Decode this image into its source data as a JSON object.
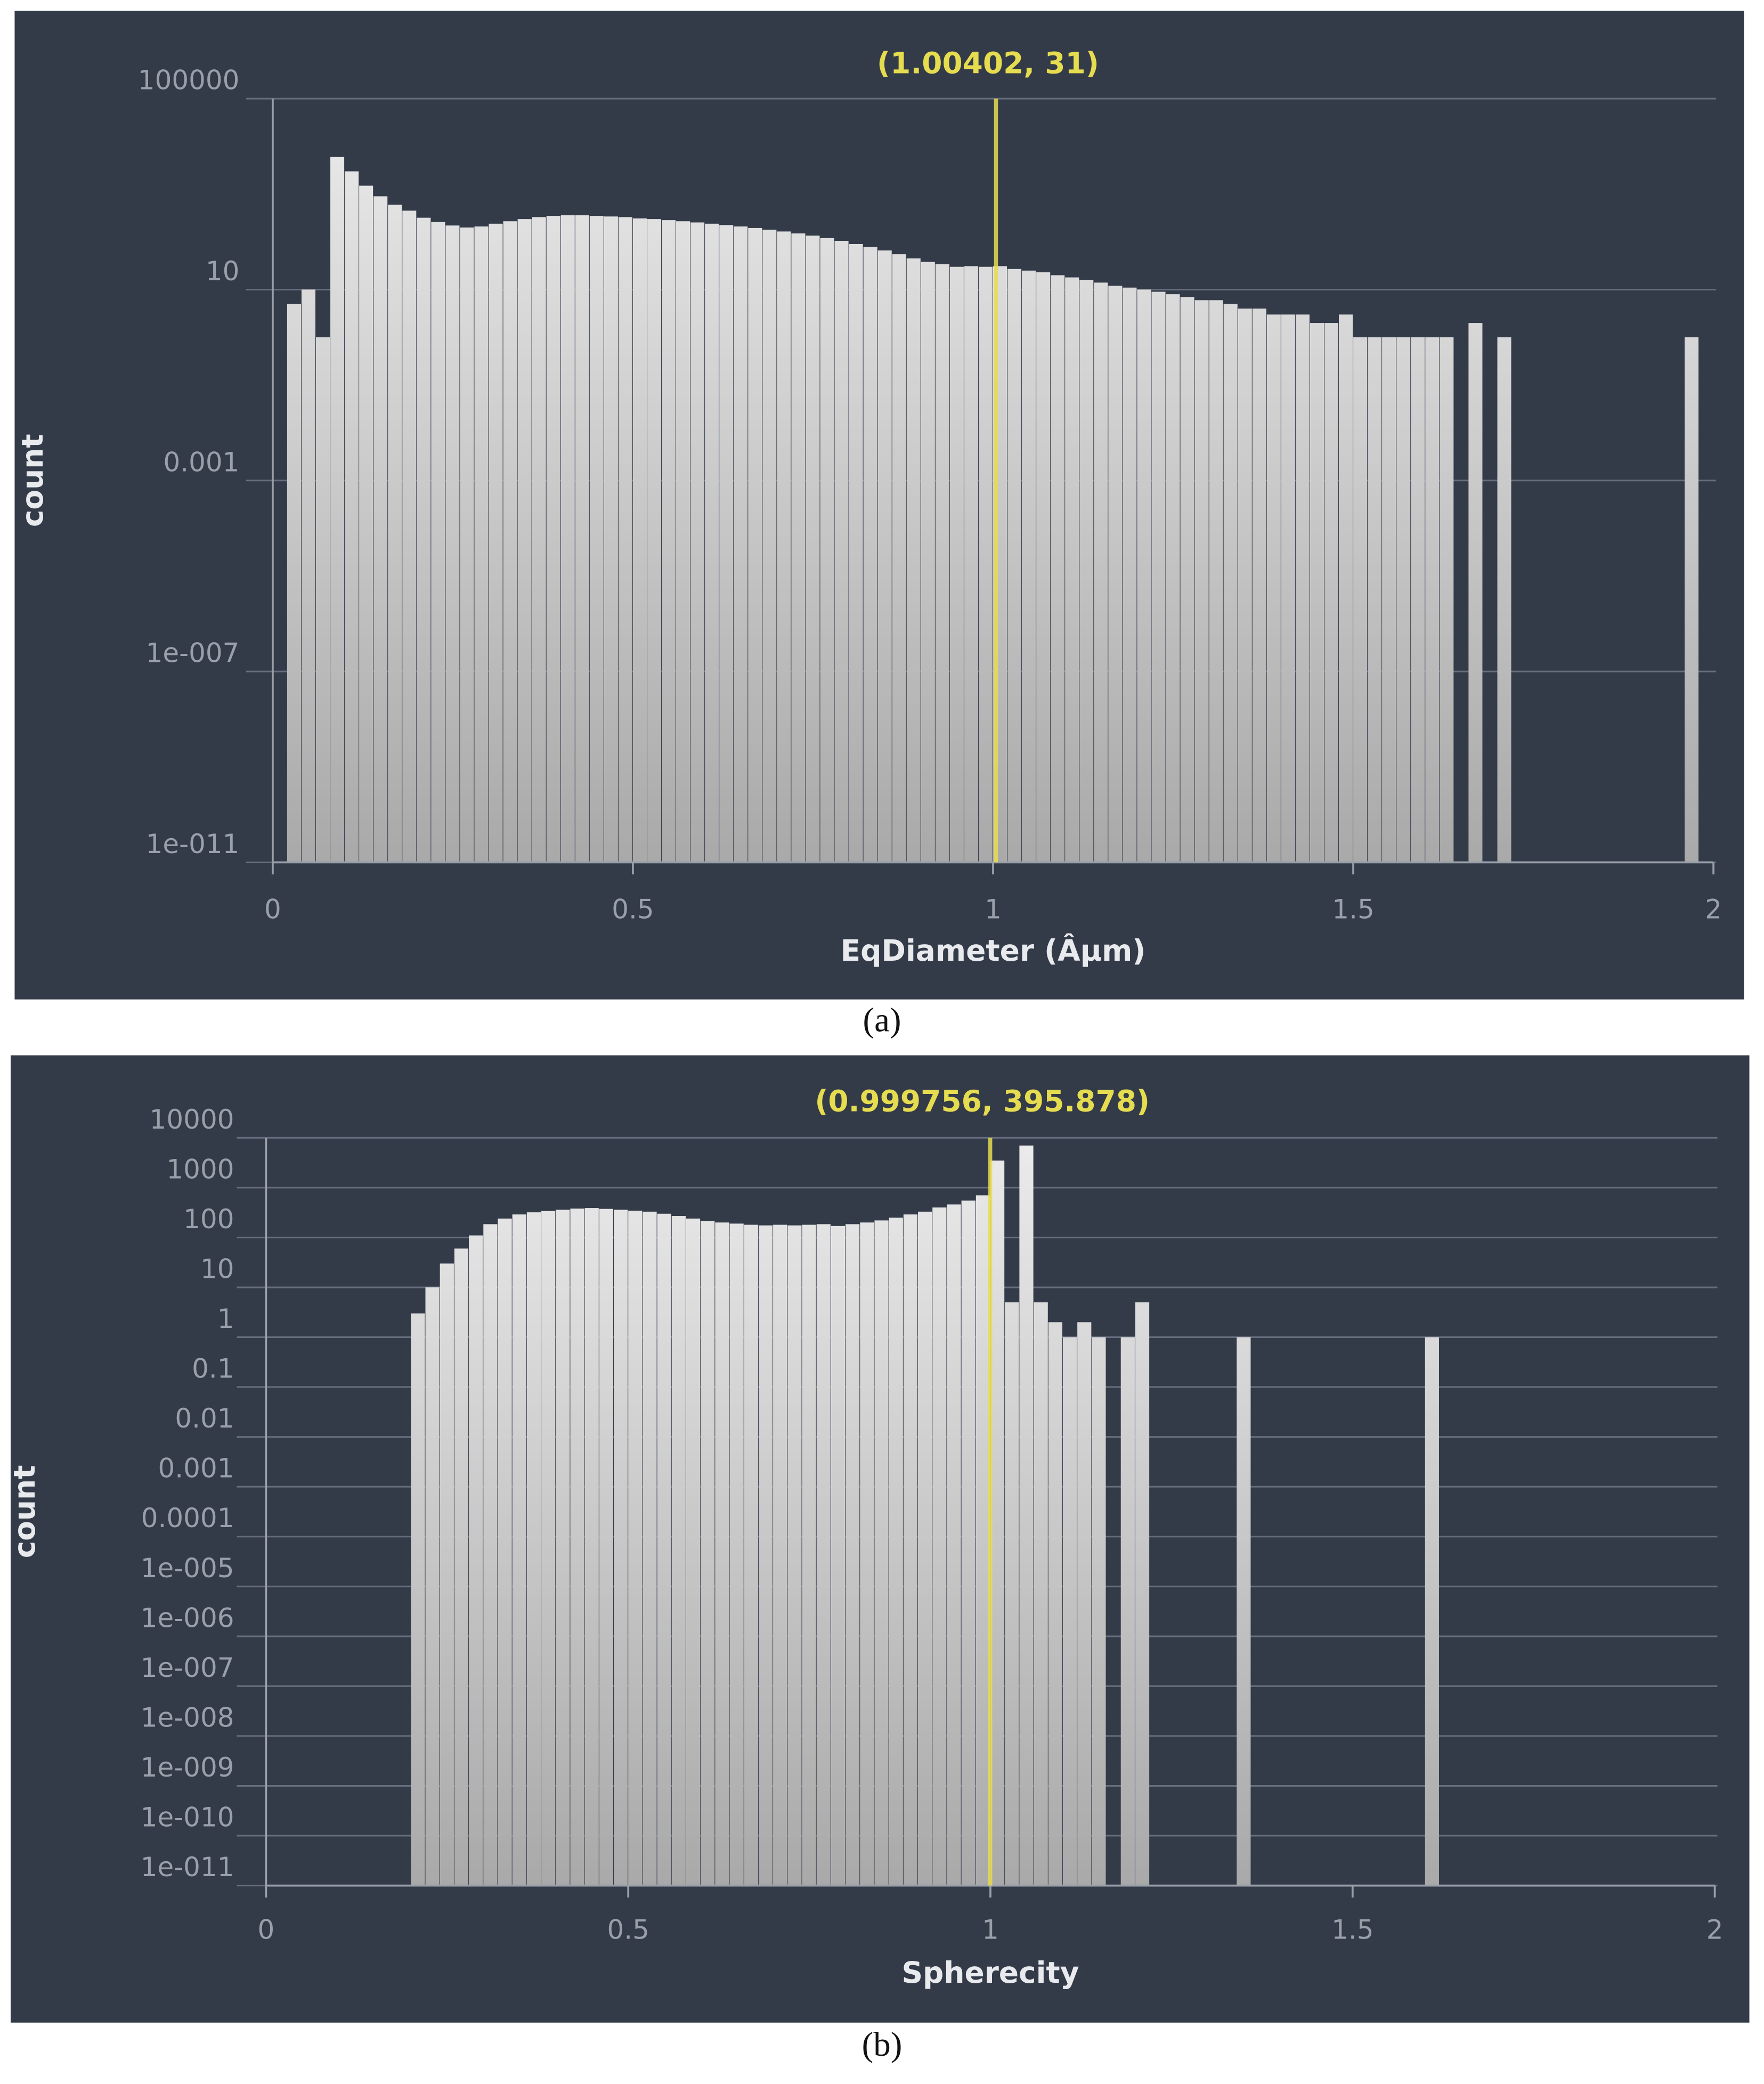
{
  "chart_data": [
    {
      "type": "histogram",
      "caption": "(a)",
      "xlabel": "EqDiameter (Âµm)",
      "ylabel": "count",
      "cursor": {
        "x": 1.00402,
        "label": "(1.00402, 31)"
      },
      "color": "#d6d6d6",
      "cursor_color": "#e6dc50",
      "log_y": true,
      "grid": true,
      "xlim": [
        0,
        2
      ],
      "xticks": [
        0,
        0.5,
        1,
        1.5,
        2
      ],
      "ylim": [
        1e-11,
        100000
      ],
      "yticks": [
        100000,
        10,
        0.001,
        {
          "value": 1e-07,
          "label": "1e-007"
        },
        {
          "value": 1e-11,
          "label": "1e-011"
        }
      ],
      "bins": [
        0,
        0.02,
        0.04,
        0.06,
        0.08,
        0.1,
        0.12,
        0.14,
        0.16,
        0.18,
        0.2,
        0.22,
        0.24,
        0.26,
        0.28,
        0.3,
        0.32,
        0.34,
        0.36,
        0.38,
        0.4,
        0.42,
        0.44,
        0.46,
        0.48,
        0.5,
        0.52,
        0.54,
        0.56,
        0.58,
        0.6,
        0.62,
        0.64,
        0.66,
        0.68,
        0.7,
        0.72,
        0.74,
        0.76,
        0.78,
        0.8,
        0.82,
        0.84,
        0.86,
        0.88,
        0.9,
        0.92,
        0.94,
        0.96,
        0.98,
        1,
        1.02,
        1.04,
        1.06,
        1.08,
        1.1,
        1.12,
        1.14,
        1.16,
        1.18,
        1.2,
        1.22,
        1.24,
        1.26,
        1.28,
        1.3,
        1.32,
        1.34,
        1.36,
        1.38,
        1.4,
        1.42,
        1.44,
        1.46,
        1.48,
        1.5,
        1.52,
        1.54,
        1.56,
        1.58,
        1.6,
        1.62,
        1.64,
        1.66,
        1.68,
        1.7,
        1.72,
        1.74,
        1.76,
        1.78,
        1.8,
        1.82,
        1.84,
        1.86,
        1.88,
        1.9,
        1.92,
        1.94,
        1.96,
        1.98,
        2
      ],
      "counts": [
        0,
        5,
        10,
        1,
        6000,
        3000,
        1500,
        900,
        600,
        450,
        320,
        260,
        220,
        200,
        210,
        240,
        270,
        300,
        330,
        350,
        360,
        360,
        350,
        340,
        330,
        310,
        300,
        285,
        270,
        255,
        240,
        225,
        210,
        195,
        180,
        165,
        150,
        135,
        120,
        105,
        90,
        78,
        66,
        55,
        45,
        38,
        34,
        30,
        31,
        30,
        31,
        27,
        25,
        23,
        20,
        18,
        16,
        14,
        12,
        11,
        10,
        9,
        8,
        7,
        6,
        6,
        5,
        4,
        4,
        3,
        3,
        3,
        2,
        2,
        3,
        1,
        1,
        1,
        1,
        1,
        1,
        1,
        0,
        2,
        0,
        1,
        0,
        0,
        0,
        0,
        0,
        0,
        0,
        0,
        0,
        0,
        0,
        0,
        1,
        0
      ]
    },
    {
      "type": "histogram",
      "caption": "(b)",
      "xlabel": "Spherecity",
      "ylabel": "count",
      "cursor": {
        "x": 0.999756,
        "label": "(0.999756, 395.878)"
      },
      "color": "#d6d6d6",
      "cursor_color": "#e6dc50",
      "log_y": true,
      "grid": true,
      "xlim": [
        0,
        2
      ],
      "xticks": [
        0,
        0.5,
        1,
        1.5,
        2
      ],
      "ylim": [
        1e-11,
        10000
      ],
      "yticks": [
        10000,
        1000,
        100,
        10,
        1,
        0.1,
        0.01,
        0.001,
        0.0001,
        {
          "value": 1e-05,
          "label": "1e-005"
        },
        {
          "value": 1e-06,
          "label": "1e-006"
        },
        {
          "value": 1e-07,
          "label": "1e-007"
        },
        {
          "value": 1e-08,
          "label": "1e-008"
        },
        {
          "value": 1e-09,
          "label": "1e-009"
        },
        {
          "value": 1e-10,
          "label": "1e-010"
        },
        {
          "value": 1e-11,
          "label": "1e-011"
        }
      ],
      "bins": [
        0,
        0.02,
        0.04,
        0.06,
        0.08,
        0.1,
        0.12,
        0.14,
        0.16,
        0.18,
        0.2,
        0.22,
        0.24,
        0.26,
        0.28,
        0.3,
        0.32,
        0.34,
        0.36,
        0.38,
        0.4,
        0.42,
        0.44,
        0.46,
        0.48,
        0.5,
        0.52,
        0.54,
        0.56,
        0.58,
        0.6,
        0.62,
        0.64,
        0.66,
        0.68,
        0.7,
        0.72,
        0.74,
        0.76,
        0.78,
        0.8,
        0.82,
        0.84,
        0.86,
        0.88,
        0.9,
        0.92,
        0.94,
        0.96,
        0.98,
        1,
        1.02,
        1.04,
        1.06,
        1.08,
        1.1,
        1.12,
        1.14,
        1.16,
        1.18,
        1.2,
        1.22,
        1.24,
        1.26,
        1.28,
        1.3,
        1.32,
        1.34,
        1.36,
        1.38,
        1.4,
        1.42,
        1.44,
        1.46,
        1.48,
        1.5,
        1.52,
        1.54,
        1.56,
        1.58,
        1.6,
        1.62,
        1.64,
        1.66,
        1.68,
        1.7,
        1.72,
        1.74,
        1.76,
        1.78,
        1.8,
        1.82,
        1.84,
        1.86,
        1.88,
        1.9,
        1.92,
        1.94,
        1.96,
        1.98,
        2
      ],
      "counts": [
        0,
        0,
        0,
        0,
        0,
        0,
        0,
        0,
        0,
        0,
        3,
        10,
        30,
        60,
        110,
        185,
        240,
        290,
        320,
        340,
        360,
        380,
        390,
        375,
        360,
        345,
        330,
        300,
        270,
        240,
        215,
        200,
        190,
        180,
        175,
        180,
        175,
        180,
        185,
        170,
        185,
        200,
        220,
        250,
        290,
        330,
        400,
        460,
        550,
        700,
        3500,
        5,
        7000,
        5,
        2,
        1,
        2,
        1,
        0,
        1,
        5,
        0,
        0,
        0,
        0,
        0,
        0,
        1,
        0,
        0,
        0,
        0,
        0,
        0,
        0,
        0,
        0,
        0,
        0,
        0,
        1,
        0,
        0,
        0,
        0,
        0,
        0,
        0,
        0,
        0,
        0,
        0,
        0,
        0,
        0,
        0,
        0,
        0,
        0,
        0
      ]
    }
  ]
}
